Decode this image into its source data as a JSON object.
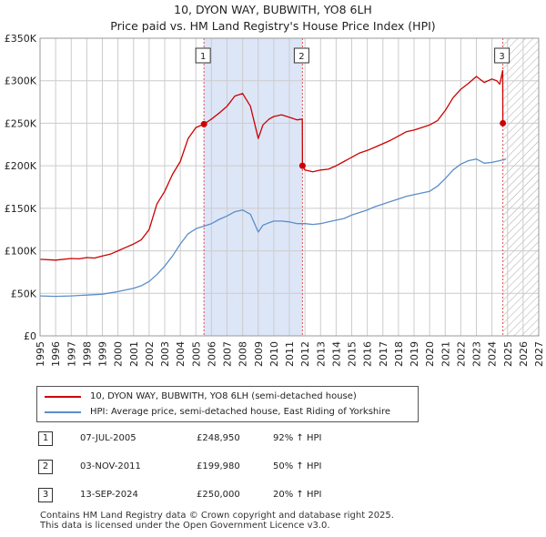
{
  "title_line1": "10, DYON WAY, BUBWITH, YO8 6LH",
  "title_line2": "Price paid vs. HM Land Registry's House Price Index (HPI)",
  "colors": {
    "property": "#cc0000",
    "hpi": "#5b8ec9",
    "shade": "#dde6f7",
    "grid": "#cccccc"
  },
  "chart_data": {
    "type": "line",
    "title": "10, DYON WAY, BUBWITH, YO8 6LH — Price paid vs. HM Land Registry's House Price Index (HPI)",
    "xlim": [
      1995,
      2027
    ],
    "ylim": [
      0,
      350000
    ],
    "x_ticks": [
      "1995",
      "1996",
      "1997",
      "1998",
      "1999",
      "2000",
      "2001",
      "2002",
      "2003",
      "2004",
      "2005",
      "2006",
      "2007",
      "2008",
      "2009",
      "2010",
      "2011",
      "2012",
      "2013",
      "2014",
      "2015",
      "2016",
      "2017",
      "2018",
      "2019",
      "2020",
      "2021",
      "2022",
      "2023",
      "2024",
      "2025",
      "2026",
      "2027"
    ],
    "y_ticks": [
      {
        "value": 0,
        "label": "£0"
      },
      {
        "value": 50000,
        "label": "£50K"
      },
      {
        "value": 100000,
        "label": "£100K"
      },
      {
        "value": 150000,
        "label": "£150K"
      },
      {
        "value": 200000,
        "label": "£200K"
      },
      {
        "value": 250000,
        "label": "£250K"
      },
      {
        "value": 300000,
        "label": "£300K"
      },
      {
        "value": 350000,
        "label": "£350K"
      }
    ],
    "shaded_range": [
      2005.5,
      2011.84
    ],
    "hatch_from": 2024.71,
    "series": [
      {
        "name": "10, DYON WAY, BUBWITH, YO8 6LH (semi-detached house)",
        "x": [
          1995,
          1996,
          1997,
          1997.5,
          1998,
          1998.5,
          1999,
          1999.5,
          2000,
          2000.5,
          2001,
          2001.5,
          2002,
          2002.5,
          2003,
          2003.5,
          2004,
          2004.5,
          2005,
          2005.52,
          2006,
          2006.5,
          2007,
          2007.5,
          2008,
          2008.5,
          2009,
          2009.3,
          2009.7,
          2010,
          2010.5,
          2011,
          2011.5,
          2011.83,
          2011.84,
          2012,
          2012.5,
          2013,
          2013.5,
          2014,
          2014.5,
          2015,
          2015.5,
          2016,
          2016.5,
          2017,
          2017.5,
          2018,
          2018.5,
          2019,
          2019.5,
          2020,
          2020.5,
          2021,
          2021.5,
          2022,
          2022.5,
          2023,
          2023.5,
          2024,
          2024.3,
          2024.5,
          2024.69,
          2024.7
        ],
        "y": [
          90000,
          89000,
          91000,
          90500,
          92000,
          91500,
          94000,
          96000,
          100000,
          104000,
          108000,
          113000,
          125000,
          155000,
          170000,
          190000,
          205000,
          232000,
          245000,
          248950,
          255000,
          262000,
          270000,
          282000,
          285000,
          270000,
          232000,
          248000,
          255000,
          258000,
          260000,
          257000,
          254000,
          255000,
          199980,
          195000,
          193000,
          195000,
          196000,
          200000,
          205000,
          210000,
          215000,
          218000,
          222000,
          226000,
          230000,
          235000,
          240000,
          242000,
          245000,
          248000,
          253000,
          265000,
          280000,
          290000,
          297000,
          305000,
          298000,
          302000,
          300000,
          296000,
          312000,
          250000
        ]
      },
      {
        "name": "HPI: Average price, semi-detached house, East Riding of Yorkshire",
        "x": [
          1995,
          1996,
          1997,
          1997.5,
          1998,
          1998.5,
          1999,
          1999.5,
          2000,
          2000.5,
          2001,
          2001.5,
          2002,
          2002.5,
          2003,
          2003.5,
          2004,
          2004.5,
          2005,
          2005.5,
          2006,
          2006.5,
          2007,
          2007.5,
          2008,
          2008.5,
          2009,
          2009.3,
          2009.7,
          2010,
          2010.5,
          2011,
          2011.5,
          2012,
          2012.5,
          2013,
          2013.5,
          2014,
          2014.5,
          2015,
          2015.5,
          2016,
          2016.5,
          2017,
          2017.5,
          2018,
          2018.5,
          2019,
          2019.5,
          2020,
          2020.5,
          2021,
          2021.5,
          2022,
          2022.5,
          2023,
          2023.5,
          2024,
          2024.5,
          2024.9
        ],
        "y": [
          47000,
          46500,
          47000,
          47500,
          48000,
          48500,
          49000,
          50500,
          52000,
          54000,
          56000,
          59000,
          64000,
          72000,
          82000,
          94000,
          108000,
          120000,
          126000,
          129000,
          132000,
          137000,
          141000,
          146000,
          148000,
          143000,
          122000,
          130000,
          133000,
          135000,
          135000,
          134000,
          132000,
          132000,
          131000,
          132000,
          134000,
          136000,
          138000,
          142000,
          145000,
          148000,
          152000,
          155000,
          158000,
          161000,
          164000,
          166000,
          168000,
          170000,
          176000,
          185000,
          195000,
          202000,
          206000,
          208000,
          203000,
          204000,
          206000,
          208000
        ]
      }
    ],
    "markers": [
      {
        "label": "1",
        "x": 2005.52,
        "y": 248950
      },
      {
        "label": "2",
        "x": 2011.84,
        "y": 199980
      },
      {
        "label": "3",
        "x": 2024.7,
        "y": 250000
      }
    ]
  },
  "legend": {
    "property_label": "10, DYON WAY, BUBWITH, YO8 6LH (semi-detached house)",
    "hpi_label": "HPI: Average price, semi-detached house, East Riding of Yorkshire"
  },
  "transactions": [
    {
      "num": "1",
      "date": "07-JUL-2005",
      "price": "£248,950",
      "hpi": "92% ↑ HPI"
    },
    {
      "num": "2",
      "date": "03-NOV-2011",
      "price": "£199,980",
      "hpi": "50% ↑ HPI"
    },
    {
      "num": "3",
      "date": "13-SEP-2024",
      "price": "£250,000",
      "hpi": "20% ↑ HPI"
    }
  ],
  "footer_line1": "Contains HM Land Registry data © Crown copyright and database right 2025.",
  "footer_line2": "This data is licensed under the Open Government Licence v3.0."
}
